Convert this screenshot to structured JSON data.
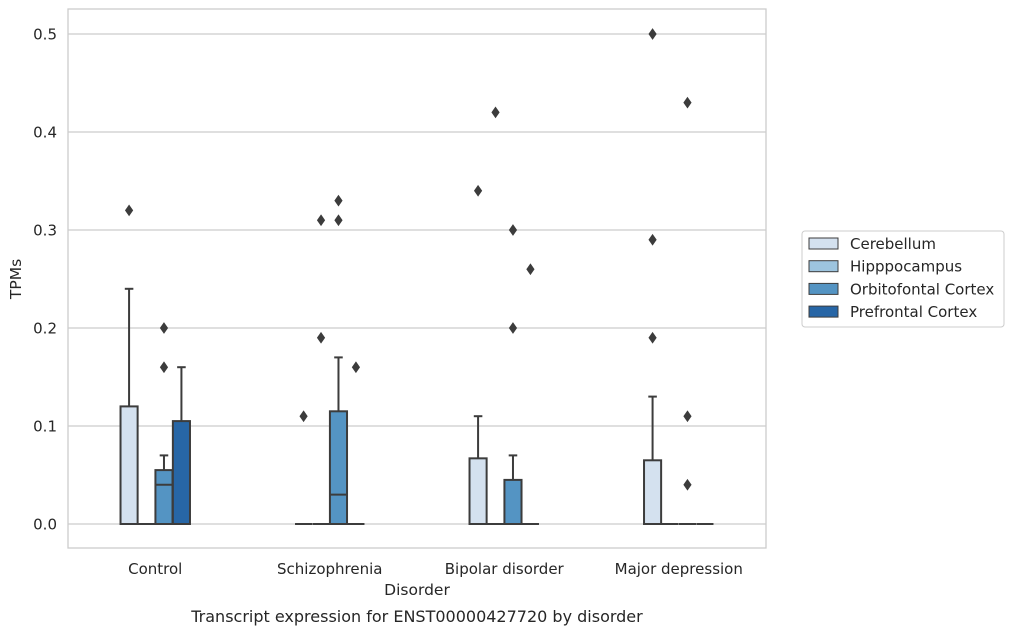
{
  "chart_data": {
    "type": "box",
    "caption": "Transcript expression for ENST00000427720 by disorder",
    "xlabel": "Disorder",
    "ylabel": "TPMs",
    "ylim": [
      -0.025,
      0.525
    ],
    "yticks": [
      0.0,
      0.1,
      0.2,
      0.3,
      0.4,
      0.5
    ],
    "ytick_labels": [
      "0.0",
      "0.1",
      "0.2",
      "0.3",
      "0.4",
      "0.5"
    ],
    "grid": "horizontal",
    "legend_position": "right",
    "categories": [
      "Control",
      "Schizophrenia",
      "Bipolar disorder",
      "Major depression"
    ],
    "series": [
      {
        "name": "Cerebellum",
        "color": "#d4e1ef",
        "boxes": [
          {
            "q1": 0.0,
            "median": 0.0,
            "q3": 0.12,
            "whislo": 0.0,
            "whishi": 0.24,
            "fliers": [
              0.32
            ]
          },
          {
            "q1": 0.0,
            "median": 0.0,
            "q3": 0.0,
            "whislo": 0.0,
            "whishi": 0.0,
            "fliers": [
              0.11
            ]
          },
          {
            "q1": 0.0,
            "median": 0.0,
            "q3": 0.067,
            "whislo": 0.0,
            "whishi": 0.11,
            "fliers": [
              0.34
            ]
          },
          {
            "q1": 0.0,
            "median": 0.0,
            "q3": 0.065,
            "whislo": 0.0,
            "whishi": 0.13,
            "fliers": [
              0.19,
              0.29,
              0.5
            ]
          }
        ]
      },
      {
        "name": "Hipppocampus",
        "color": "#9dc4de",
        "boxes": [
          {
            "q1": 0.0,
            "median": 0.0,
            "q3": 0.0,
            "whislo": 0.0,
            "whishi": 0.0,
            "fliers": []
          },
          {
            "q1": 0.0,
            "median": 0.0,
            "q3": 0.0,
            "whislo": 0.0,
            "whishi": 0.0,
            "fliers": [
              0.19,
              0.31
            ]
          },
          {
            "q1": 0.0,
            "median": 0.0,
            "q3": 0.0,
            "whislo": 0.0,
            "whishi": 0.0,
            "fliers": [
              0.42
            ]
          },
          {
            "q1": 0.0,
            "median": 0.0,
            "q3": 0.0,
            "whislo": 0.0,
            "whishi": 0.0,
            "fliers": []
          }
        ]
      },
      {
        "name": "Orbitofontal Cortex",
        "color": "#5494c3",
        "boxes": [
          {
            "q1": 0.0,
            "median": 0.04,
            "q3": 0.055,
            "whislo": 0.0,
            "whishi": 0.07,
            "fliers": [
              0.16,
              0.2
            ]
          },
          {
            "q1": 0.0,
            "median": 0.03,
            "q3": 0.115,
            "whislo": 0.0,
            "whishi": 0.17,
            "fliers": [
              0.31,
              0.33
            ]
          },
          {
            "q1": 0.0,
            "median": 0.0,
            "q3": 0.045,
            "whislo": 0.0,
            "whishi": 0.07,
            "fliers": [
              0.2,
              0.3
            ]
          },
          {
            "q1": 0.0,
            "median": 0.0,
            "q3": 0.0,
            "whislo": 0.0,
            "whishi": 0.0,
            "fliers": [
              0.04,
              0.11,
              0.43
            ]
          }
        ]
      },
      {
        "name": "Prefrontal Cortex",
        "color": "#2766a6",
        "boxes": [
          {
            "q1": 0.0,
            "median": 0.0,
            "q3": 0.105,
            "whislo": 0.0,
            "whishi": 0.16,
            "fliers": []
          },
          {
            "q1": 0.0,
            "median": 0.0,
            "q3": 0.0,
            "whislo": 0.0,
            "whishi": 0.0,
            "fliers": [
              0.16
            ]
          },
          {
            "q1": 0.0,
            "median": 0.0,
            "q3": 0.0,
            "whislo": 0.0,
            "whishi": 0.0,
            "fliers": [
              0.26
            ]
          },
          {
            "q1": 0.0,
            "median": 0.0,
            "q3": 0.0,
            "whislo": 0.0,
            "whishi": 0.0,
            "fliers": []
          }
        ]
      }
    ]
  }
}
